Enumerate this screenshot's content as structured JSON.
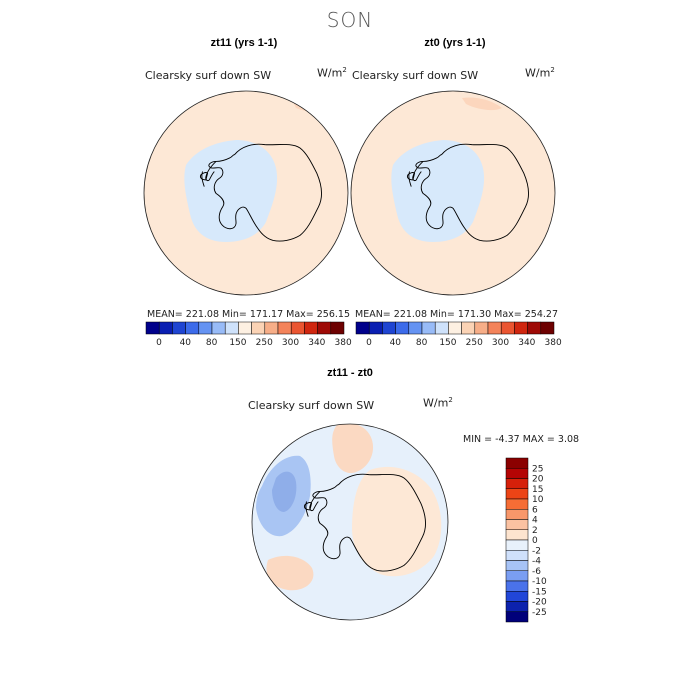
{
  "figure": {
    "season": "SON"
  },
  "colors": {
    "land_line": "#000000",
    "ocean_fill": "#fde8d6",
    "ice_fill": "#d7e9fb"
  },
  "panels": {
    "left": {
      "title": "zt11 (yrs 1-1)",
      "variable": "Clearsky surf down SW",
      "units_base": "W/m",
      "units_exp": "2",
      "stats": "MEAN= 221.08   Min= 171.17   Max= 256.15"
    },
    "right": {
      "title": "zt0 (yrs 1-1)",
      "variable": "Clearsky surf down SW",
      "units_base": "W/m",
      "units_exp": "2",
      "stats": "MEAN= 221.08   Min= 171.30   Max= 254.27"
    },
    "diff": {
      "title": "zt11 - zt0",
      "variable": "Clearsky surf down SW",
      "units_base": "W/m",
      "units_exp": "2",
      "stats": "MIN =   -4.37 MAX =    3.08"
    }
  },
  "chart_data": [
    {
      "type": "heatmap",
      "title": "zt11 (yrs 1-1)",
      "subtitle": "Clearsky surf down SW",
      "units": "W/m2",
      "projection": "south polar stereographic",
      "summary": {
        "mean": 221.08,
        "min": 171.17,
        "max": 256.15
      },
      "colorbar": {
        "labels": [
          "0",
          "40",
          "80",
          "150",
          "250",
          "300",
          "340",
          "380"
        ],
        "colors": [
          "#00008b",
          "#0a1fb2",
          "#1f45d2",
          "#3c6bea",
          "#6593f2",
          "#98bbf7",
          "#cfe2fb",
          "#fdf0e2",
          "#fbd3b5",
          "#f7ae88",
          "#f3835a",
          "#ea5531",
          "#d0260f",
          "#9e0a06",
          "#6d0000"
        ]
      }
    },
    {
      "type": "heatmap",
      "title": "zt0 (yrs 1-1)",
      "subtitle": "Clearsky surf down SW",
      "units": "W/m2",
      "projection": "south polar stereographic",
      "summary": {
        "mean": 221.08,
        "min": 171.3,
        "max": 254.27
      },
      "colorbar": {
        "labels": [
          "0",
          "40",
          "80",
          "150",
          "250",
          "300",
          "340",
          "380"
        ],
        "colors": [
          "#00008b",
          "#0a1fb2",
          "#1f45d2",
          "#3c6bea",
          "#6593f2",
          "#98bbf7",
          "#cfe2fb",
          "#fdf0e2",
          "#fbd3b5",
          "#f7ae88",
          "#f3835a",
          "#ea5531",
          "#d0260f",
          "#9e0a06",
          "#6d0000"
        ]
      }
    },
    {
      "type": "heatmap",
      "title": "zt11 - zt0",
      "subtitle": "Clearsky surf down SW",
      "units": "W/m2",
      "projection": "south polar stereographic",
      "summary": {
        "min": -4.37,
        "max": 3.08
      },
      "colorbar": {
        "labels": [
          "25",
          "20",
          "15",
          "10",
          "6",
          "4",
          "2",
          "0",
          "-2",
          "-4",
          "-6",
          "-10",
          "-15",
          "-20",
          "-25"
        ],
        "colors": [
          "#8b0000",
          "#b40404",
          "#d6200a",
          "#ec4416",
          "#f66d35",
          "#f8976a",
          "#fbc2a2",
          "#fde4cf",
          "#e8f1fb",
          "#cfe0fb",
          "#a7c3f6",
          "#7a9ef2",
          "#4a72ea",
          "#2146d8",
          "#0c22ad",
          "#00007a"
        ]
      }
    }
  ]
}
